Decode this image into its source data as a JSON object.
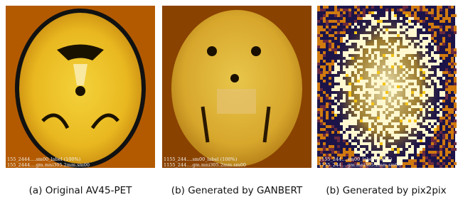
{
  "panels": [
    {
      "caption": "(a) Original AV45-PET",
      "overlay": [
        "155_2444....sm00_label (100%)",
        "155_2444....gm.mni305.2mm.sm00"
      ]
    },
    {
      "caption": "(b) Generated by GANBERT",
      "overlay": [
        "1155_244....sm00_label (100%)",
        "1155_244....gm.mni305.2mm.sm00"
      ]
    },
    {
      "caption": "(b) Generated by pix2pix",
      "overlay": [
        "1155_244....sm00_label (100%)",
        "1155_244....gm.mni305.2mm.sm00"
      ]
    }
  ]
}
